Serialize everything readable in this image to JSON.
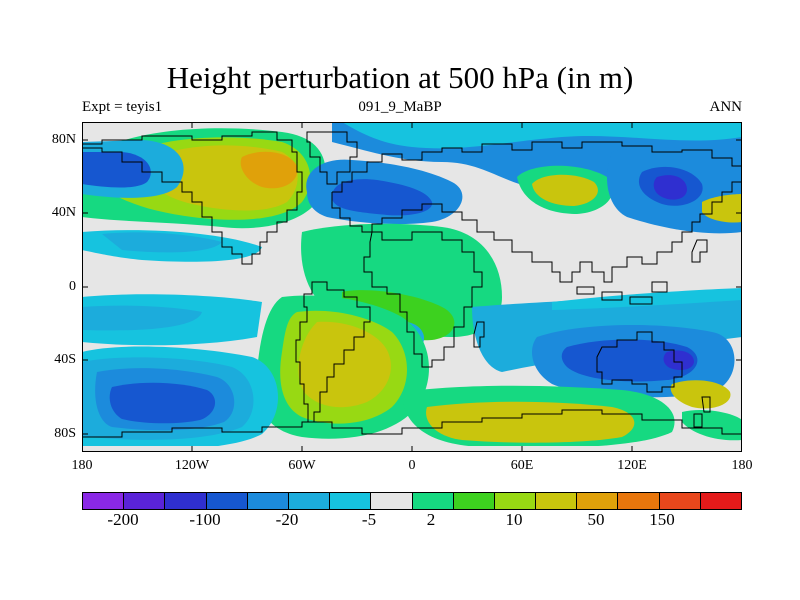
{
  "header": {
    "title": "Height perturbation at 500 hPa (in m)",
    "left": "Expt = teyis1",
    "center": "091_9_MaBP",
    "right": "ANN"
  },
  "axes": {
    "lat_ticks": [
      "80N",
      "40N",
      "0",
      "40S",
      "80S"
    ],
    "lon_ticks": [
      "180",
      "120W",
      "60W",
      "0",
      "60E",
      "120E",
      "180"
    ]
  },
  "colorbar": {
    "colors": [
      "#8a28e6",
      "#5a23d8",
      "#2f2fd0",
      "#1657d0",
      "#1c8bdc",
      "#1cacdc",
      "#16c3df",
      "#e6e6e6",
      "#16d981",
      "#3dd11f",
      "#98d913",
      "#c9c50d",
      "#e0a10a",
      "#e8760c",
      "#e8471c",
      "#e41a1a"
    ],
    "labels": [
      "-200",
      "-100",
      "-20",
      "-5",
      "2",
      "10",
      "50",
      "150"
    ]
  }
}
